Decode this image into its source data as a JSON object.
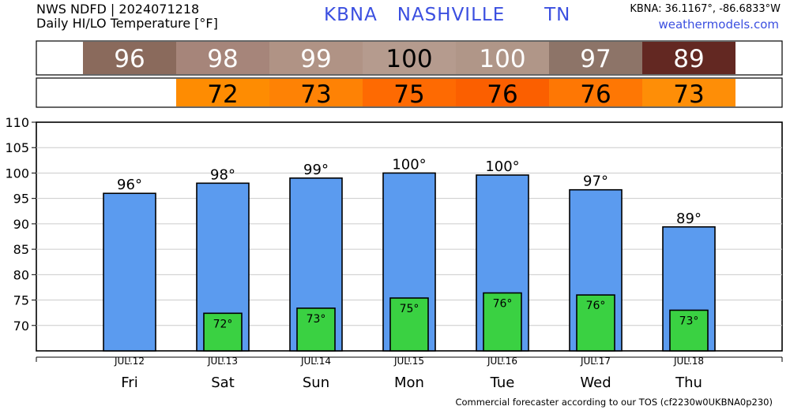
{
  "header": {
    "source_line": "NWS NDFD | 2024071218",
    "product_line": "Daily HI/LO Temperature [°F]",
    "station_title": "KBNA   NASHVILLE      TN",
    "coords": "KBNA: 36.1167°, -86.6833°W",
    "site": "weathermodels.com"
  },
  "footer": "Commercial forecaster according to our TOS (cf2230w0UKBNA0p230)",
  "colors": {
    "high_bar": "#5b9bef",
    "low_bar": "#3ad142",
    "high_cells": [
      "#8a6a5c",
      "#a6857a",
      "#b09385",
      "#b59b8e",
      "#b09688",
      "#8d7468",
      "#632822"
    ],
    "low_cells": [
      "#fe8c02",
      "#fe8205",
      "#fe6a02",
      "#fb5f00",
      "#fe7704",
      "#fe8e07"
    ]
  },
  "chart_data": {
    "type": "bar",
    "title": "Daily HI/LO Temperature [°F]",
    "categories": [
      "JUL.12",
      "JUL.13",
      "JUL.14",
      "JUL.15",
      "JUL.16",
      "JUL.17",
      "JUL.18"
    ],
    "day_labels": [
      "Fri",
      "Sat",
      "Sun",
      "Mon",
      "Tue",
      "Wed",
      "Thu"
    ],
    "ylim": [
      65,
      110
    ],
    "yticks": [
      70,
      75,
      80,
      85,
      90,
      95,
      100,
      105,
      110
    ],
    "series": [
      {
        "values": [
          96,
          98,
          99,
          100,
          99.6,
          96.7,
          89.4
        ],
        "labels": [
          "96°",
          "98°",
          "99°",
          "100°",
          "100°",
          "97°",
          "89°"
        ],
        "table_values": [
          "96",
          "98",
          "99",
          "100",
          "100",
          "97",
          "89"
        ]
      },
      {
        "values": [
          null,
          72.4,
          73.4,
          75.4,
          76.4,
          76,
          73
        ],
        "labels": [
          "",
          "72°",
          "73°",
          "75°",
          "76°",
          "76°",
          "73°"
        ],
        "table_values": [
          "",
          "72",
          "73",
          "75",
          "76",
          "76",
          "73"
        ]
      }
    ],
    "grid": true
  }
}
